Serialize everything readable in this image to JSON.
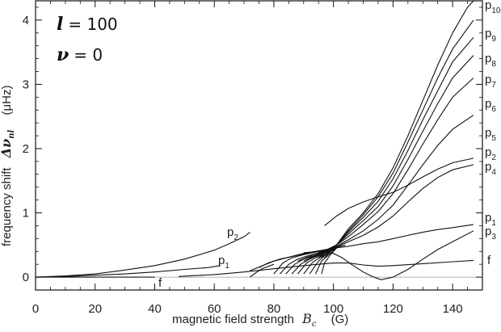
{
  "chart_data": {
    "type": "line",
    "xlabel": {
      "text": "magnetic field strength",
      "symbol": "B",
      "subscript": "c",
      "unit": "(G)"
    },
    "ylabel": {
      "text": "frequency shift",
      "symbol": "Δν",
      "subscript": "nl",
      "unit": "(μHz)"
    },
    "xlim": [
      0,
      150
    ],
    "ylim": [
      -0.2,
      4.3
    ],
    "xticks": [
      0,
      20,
      40,
      60,
      80,
      100,
      120,
      140
    ],
    "yticks": [
      0,
      1,
      2,
      3,
      4
    ],
    "annotations": [
      {
        "symbol": "l",
        "text": "= 100"
      },
      {
        "symbol": "ν",
        "text": "= 0"
      }
    ],
    "series": [
      {
        "label_main": "p",
        "label_sub": "10",
        "x": [
          97,
          101,
          105,
          110,
          115,
          120,
          125,
          130,
          135,
          140,
          145,
          147
        ],
        "y": [
          0.3,
          0.5,
          0.75,
          1.0,
          1.3,
          1.7,
          2.2,
          2.75,
          3.3,
          3.8,
          4.2,
          4.3
        ]
      },
      {
        "label_main": "p",
        "label_sub": "9",
        "x": [
          96,
          101,
          105,
          110,
          115,
          120,
          125,
          130,
          135,
          140,
          147
        ],
        "y": [
          0.3,
          0.5,
          0.72,
          0.97,
          1.25,
          1.62,
          2.1,
          2.6,
          3.1,
          3.55,
          4.0
        ]
      },
      {
        "label_main": "p",
        "label_sub": "8",
        "x": [
          95,
          101,
          105,
          110,
          115,
          120,
          125,
          130,
          135,
          140,
          147
        ],
        "y": [
          0.3,
          0.5,
          0.7,
          0.93,
          1.18,
          1.53,
          1.97,
          2.45,
          2.9,
          3.35,
          3.73
        ]
      },
      {
        "label_main": "p",
        "label_sub": "7",
        "x": [
          94,
          101,
          105,
          110,
          115,
          120,
          125,
          130,
          135,
          140,
          147
        ],
        "y": [
          0.3,
          0.5,
          0.67,
          0.88,
          1.1,
          1.42,
          1.83,
          2.27,
          2.7,
          3.1,
          3.45
        ]
      },
      {
        "label_main": "p",
        "label_sub": "6",
        "x": [
          92,
          101,
          105,
          110,
          115,
          120,
          125,
          130,
          135,
          140,
          147
        ],
        "y": [
          0.3,
          0.5,
          0.63,
          0.82,
          1.02,
          1.3,
          1.67,
          2.07,
          2.45,
          2.8,
          3.1
        ]
      },
      {
        "label_main": "p",
        "label_sub": "5",
        "x": [
          90,
          101,
          105,
          110,
          115,
          120,
          125,
          130,
          135,
          140,
          147
        ],
        "y": [
          0.25,
          0.48,
          0.58,
          0.72,
          0.9,
          1.12,
          1.43,
          1.75,
          2.05,
          2.3,
          2.52
        ]
      },
      {
        "label_main": "p",
        "label_sub": "2",
        "x": [
          97,
          101,
          105,
          110,
          115,
          120,
          125,
          130,
          135,
          140,
          147
        ],
        "y": [
          0.8,
          0.95,
          1.07,
          1.17,
          1.25,
          1.32,
          1.43,
          1.56,
          1.68,
          1.78,
          1.85
        ]
      },
      {
        "label_main": "p",
        "label_sub": "4",
        "x": [
          88,
          95,
          101,
          105,
          110,
          115,
          120,
          125,
          130,
          135,
          140,
          147
        ],
        "y": [
          0.25,
          0.38,
          0.47,
          0.55,
          0.65,
          0.78,
          0.95,
          1.17,
          1.38,
          1.55,
          1.67,
          1.75
        ]
      },
      {
        "label_main": "p",
        "label_sub": "1",
        "x": [
          72,
          80,
          90,
          100,
          105,
          110,
          115,
          120,
          125,
          130,
          135,
          140,
          147
        ],
        "y": [
          0.1,
          0.25,
          0.37,
          0.45,
          0.48,
          0.52,
          0.55,
          0.6,
          0.65,
          0.7,
          0.74,
          0.77,
          0.82
        ]
      },
      {
        "label_main": "p",
        "label_sub": "3",
        "x": [
          90,
          95,
          100,
          103,
          106,
          110,
          113,
          116,
          120,
          125,
          130,
          135,
          140,
          147
        ],
        "y": [
          0.38,
          0.4,
          0.37,
          0.3,
          0.2,
          0.08,
          0.01,
          -0.04,
          0.0,
          0.12,
          0.28,
          0.43,
          0.55,
          0.72
        ]
      },
      {
        "label_main": "f",
        "label_sub": "",
        "x": [
          48,
          60,
          70,
          80,
          90,
          100,
          105,
          110,
          115,
          120,
          130,
          140,
          147
        ],
        "y": [
          0.01,
          0.04,
          0.08,
          0.13,
          0.18,
          0.22,
          0.22,
          0.19,
          0.17,
          0.18,
          0.21,
          0.24,
          0.26
        ]
      },
      {
        "label_main": "p",
        "label_sub": "2",
        "x": [
          0,
          10,
          20,
          30,
          40,
          50,
          60,
          65,
          70,
          72
        ],
        "y": [
          0.0,
          0.02,
          0.05,
          0.11,
          0.18,
          0.28,
          0.42,
          0.52,
          0.63,
          0.7
        ]
      },
      {
        "label_main": "p",
        "label_sub": "1",
        "x": [
          0,
          10,
          20,
          30,
          40,
          50,
          58,
          62
        ],
        "y": [
          0.0,
          0.01,
          0.03,
          0.05,
          0.08,
          0.12,
          0.15,
          0.18
        ]
      },
      {
        "label_main": "f",
        "label_sub": "",
        "x": [
          0,
          10,
          20,
          30,
          35,
          40
        ],
        "y": [
          0.0,
          0.0,
          0.0,
          0.0,
          0.0,
          0.0
        ]
      }
    ],
    "extra_curves": [
      {
        "x": [
          80,
          83,
          86,
          90,
          95,
          100,
          104
        ],
        "y": [
          0.05,
          0.22,
          0.3,
          0.35,
          0.4,
          0.45,
          0.5
        ]
      },
      {
        "x": [
          82,
          85,
          88,
          92,
          97,
          101
        ],
        "y": [
          0.05,
          0.2,
          0.28,
          0.34,
          0.4,
          0.45
        ]
      },
      {
        "x": [
          84,
          87,
          90,
          94,
          98,
          101
        ],
        "y": [
          0.05,
          0.2,
          0.28,
          0.34,
          0.4,
          0.45
        ]
      },
      {
        "x": [
          86,
          89,
          92,
          95,
          99,
          101
        ],
        "y": [
          0.05,
          0.2,
          0.28,
          0.34,
          0.41,
          0.45
        ]
      },
      {
        "x": [
          88,
          91,
          94,
          97,
          101
        ],
        "y": [
          0.05,
          0.22,
          0.3,
          0.37,
          0.45
        ]
      },
      {
        "x": [
          90,
          93,
          96,
          99,
          101
        ],
        "y": [
          0.05,
          0.23,
          0.32,
          0.4,
          0.45
        ]
      },
      {
        "x": [
          92,
          95,
          97,
          99,
          101
        ],
        "y": [
          0.05,
          0.25,
          0.33,
          0.4,
          0.45
        ]
      },
      {
        "x": [
          94,
          96,
          98,
          100,
          101
        ],
        "y": [
          0.05,
          0.25,
          0.33,
          0.41,
          0.45
        ]
      },
      {
        "x": [
          96,
          97,
          99,
          101
        ],
        "y": [
          0.05,
          0.22,
          0.35,
          0.45
        ]
      },
      {
        "x": [
          75,
          78,
          82,
          86,
          90,
          95,
          100
        ],
        "y": [
          0.15,
          0.22,
          0.28,
          0.32,
          0.36,
          0.4,
          0.45
        ]
      },
      {
        "x": [
          72,
          74,
          76,
          80
        ],
        "y": [
          0.0,
          0.07,
          0.13,
          0.2
        ]
      }
    ],
    "zero_line": true
  }
}
